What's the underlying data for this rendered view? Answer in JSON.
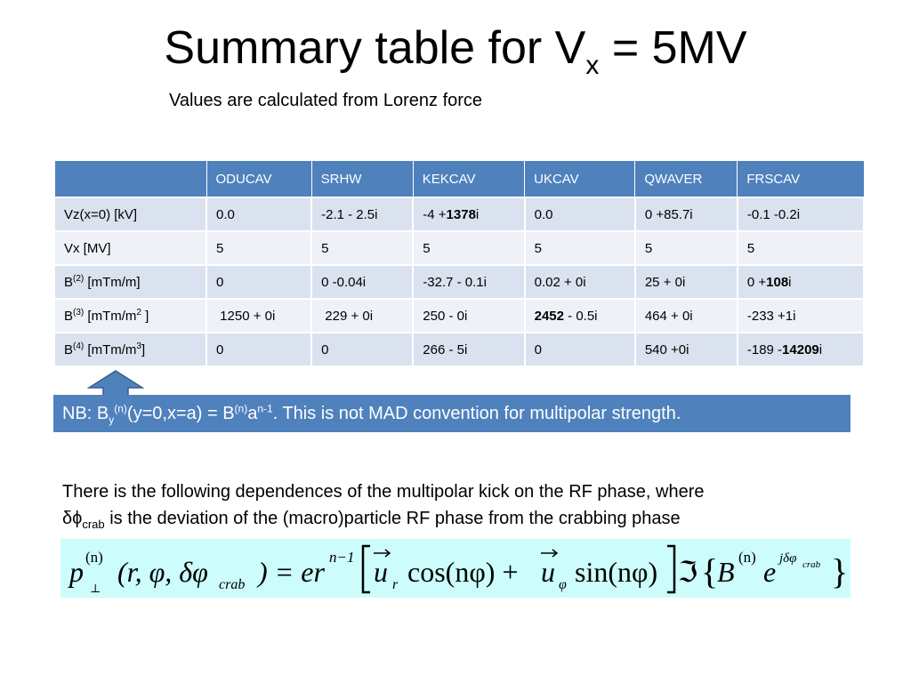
{
  "slide": {
    "title_main": "Summary table for V",
    "title_sub": "x",
    "title_tail": " = 5MV",
    "subtitle": "Values are calculated from Lorenz force"
  },
  "table": {
    "headers": [
      "",
      "ODUCAV",
      "SRHW",
      "KEKCAV",
      "UKCAV",
      "QWAVER",
      "FRSCAV"
    ],
    "rows": [
      {
        "label": {
          "pre": "Vz(x=0) [kV]",
          "sup": "",
          "mid": "",
          "sup2": "",
          "post": ""
        },
        "cells": [
          {
            "pre": "0.0",
            "bold": "",
            "post": ""
          },
          {
            "pre": "-2.1 - 2.5i",
            "bold": "",
            "post": ""
          },
          {
            "pre": "-4 +",
            "bold": "1378",
            "post": "i"
          },
          {
            "pre": "0.0",
            "bold": "",
            "post": ""
          },
          {
            "pre": "0 +85.7i",
            "bold": "",
            "post": ""
          },
          {
            "pre": "-0.1 -0.2i",
            "bold": "",
            "post": ""
          }
        ]
      },
      {
        "label": {
          "pre": "Vx [MV]",
          "sup": "",
          "mid": "",
          "sup2": "",
          "post": ""
        },
        "cells": [
          {
            "pre": "5",
            "bold": "",
            "post": ""
          },
          {
            "pre": "5",
            "bold": "",
            "post": ""
          },
          {
            "pre": "5",
            "bold": "",
            "post": ""
          },
          {
            "pre": "5",
            "bold": "",
            "post": ""
          },
          {
            "pre": "5",
            "bold": "",
            "post": ""
          },
          {
            "pre": "5",
            "bold": "",
            "post": ""
          }
        ]
      },
      {
        "label": {
          "pre": "B",
          "sup": "(2)",
          "mid": " [mTm/m]",
          "sup2": "",
          "post": ""
        },
        "cells": [
          {
            "pre": "0",
            "bold": "",
            "post": ""
          },
          {
            "pre": "0 -0.04i",
            "bold": "",
            "post": ""
          },
          {
            "pre": "-32.7 - 0.1i",
            "bold": "",
            "post": ""
          },
          {
            "pre": "0.02 + 0i",
            "bold": "",
            "post": ""
          },
          {
            "pre": "25 + 0i",
            "bold": "",
            "post": ""
          },
          {
            "pre": "0 +",
            "bold": "108",
            "post": "i"
          }
        ]
      },
      {
        "label": {
          "pre": "B",
          "sup": "(3)",
          "mid": " [mTm/m",
          "sup2": "2",
          "post": " ]"
        },
        "cells": [
          {
            "pre": " 1250 + 0i",
            "bold": "",
            "post": ""
          },
          {
            "pre": " 229 + 0i",
            "bold": "",
            "post": ""
          },
          {
            "pre": "250 - 0i",
            "bold": "",
            "post": ""
          },
          {
            "pre": "",
            "bold": "2452",
            "post": " - 0.5i"
          },
          {
            "pre": "464 + 0i",
            "bold": "",
            "post": ""
          },
          {
            "pre": "-233 +1i",
            "bold": "",
            "post": ""
          }
        ]
      },
      {
        "label": {
          "pre": "B",
          "sup": "(4)",
          "mid": " [mTm/m",
          "sup2": "3",
          "post": "]"
        },
        "cells": [
          {
            "pre": "0",
            "bold": "",
            "post": ""
          },
          {
            "pre": "0",
            "bold": "",
            "post": ""
          },
          {
            "pre": "266 - 5i",
            "bold": "",
            "post": ""
          },
          {
            "pre": "0",
            "bold": "",
            "post": ""
          },
          {
            "pre": "540 +0i",
            "bold": "",
            "post": ""
          },
          {
            "pre": "-189 -",
            "bold": "14209",
            "post": "i"
          }
        ]
      }
    ]
  },
  "note": {
    "p1": "NB: B",
    "sub1": "y",
    "sup1": "(n)",
    "p2": "(y=0,x=a) = B",
    "sup2": "(n)",
    "p3": "a",
    "sup3": "n-1",
    "p4": ". This is not MAD convention for multipolar strength."
  },
  "paragraph": {
    "line1": "There is the following dependences of the multipolar kick on the RF phase, where",
    "symbol": "δϕ",
    "sub": "crab",
    "line2": " is the deviation of the (macro)particle RF phase from the crabbing phase"
  },
  "formula": {
    "p": "p",
    "p_sup": "(n)",
    "p_sub": "⊥",
    "args": "(r, φ, δφ",
    "args_sub": "crab",
    "eq": ") = er",
    "eq_sup": "n−1",
    "ur": "u",
    "ur_sub": "r",
    "cos": "cos(nφ) +",
    "uphi": "u",
    "uphi_sub": "φ",
    "sin": "sin(nφ)",
    "im": "ℑ",
    "B": "B",
    "B_sup": "(n)",
    "e": "e",
    "e_sup": "jδφ",
    "e_sup_sub": "crab",
    "colors": {
      "background": "#ccfcfc"
    }
  },
  "colors": {
    "accent": "#4f81bd",
    "row_odd": "#dbe2ef",
    "row_even": "#eef1f7"
  }
}
